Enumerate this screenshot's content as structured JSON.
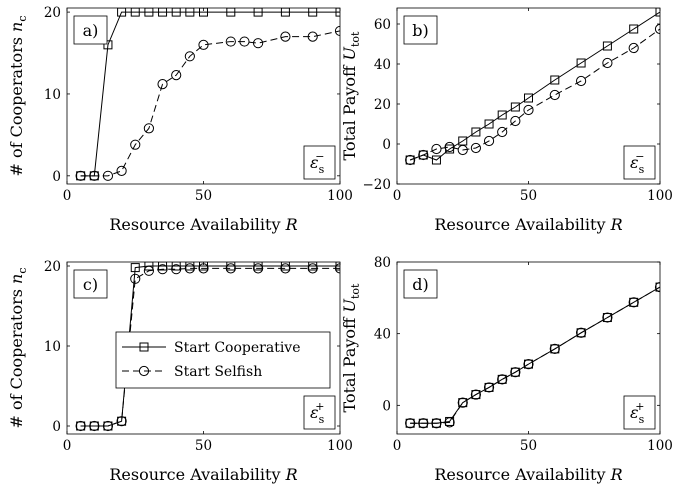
{
  "chart_data": [
    {
      "panel": "a",
      "type": "line",
      "panel_label": "a)",
      "tag": "ε_s^−",
      "xlabel": "Resource Availability R",
      "ylabel": "# of Cooperators n_c",
      "xlim": [
        0,
        100
      ],
      "ylim": [
        -1,
        20.5
      ],
      "xticks": [
        0,
        50,
        100
      ],
      "yticks": [
        0,
        10,
        20
      ],
      "grid": false,
      "series": [
        {
          "name": "Start Cooperative",
          "style": "solid",
          "marker": "square",
          "x": [
            5,
            10,
            15,
            20,
            25,
            30,
            35,
            40,
            45,
            50,
            60,
            70,
            80,
            90,
            100
          ],
          "y": [
            0,
            0,
            16,
            20,
            20,
            20,
            20,
            20,
            20,
            20,
            20,
            20,
            20,
            20,
            20
          ]
        },
        {
          "name": "Start Selfish",
          "style": "dashed",
          "marker": "circle",
          "x": [
            5,
            10,
            15,
            20,
            25,
            30,
            35,
            40,
            45,
            50,
            60,
            65,
            70,
            80,
            90,
            100
          ],
          "y": [
            0,
            0,
            0,
            0.6,
            3.8,
            5.8,
            11.2,
            12.3,
            14.6,
            16.0,
            16.4,
            16.4,
            16.2,
            17.0,
            17.0,
            17.7
          ]
        }
      ]
    },
    {
      "panel": "b",
      "type": "line",
      "panel_label": "b)",
      "tag": "ε_s^−",
      "xlabel": "Resource Availability R",
      "ylabel": "Total Payoff U_tot",
      "xlim": [
        0,
        100
      ],
      "ylim": [
        -20,
        68
      ],
      "xticks": [
        0,
        50,
        100
      ],
      "yticks": [
        -20,
        0,
        20,
        40,
        60
      ],
      "grid": false,
      "series": [
        {
          "name": "Start Cooperative",
          "style": "solid",
          "marker": "square",
          "x": [
            5,
            10,
            15,
            20,
            25,
            30,
            35,
            40,
            45,
            50,
            60,
            70,
            80,
            90,
            100
          ],
          "y": [
            -8,
            -5.5,
            -8,
            -2.5,
            1.5,
            6,
            10,
            14.5,
            18.5,
            23,
            32,
            40.5,
            49,
            57.5,
            66
          ]
        },
        {
          "name": "Start Selfish",
          "style": "dashed",
          "marker": "circle",
          "x": [
            5,
            10,
            15,
            20,
            25,
            30,
            35,
            40,
            45,
            50,
            60,
            70,
            80,
            90,
            100
          ],
          "y": [
            -8,
            -5.5,
            -2.5,
            -1.5,
            -3,
            -2,
            1.5,
            6,
            11.5,
            17,
            24.5,
            31.5,
            40.5,
            48,
            57.5
          ]
        }
      ]
    },
    {
      "panel": "c",
      "type": "line",
      "panel_label": "c)",
      "tag": "ε_s^+",
      "xlabel": "Resource Availability R",
      "ylabel": "# of Cooperators n_c",
      "xlim": [
        0,
        100
      ],
      "ylim": [
        -1,
        20.5
      ],
      "xticks": [
        0,
        50,
        100
      ],
      "yticks": [
        0,
        10,
        20
      ],
      "grid": false,
      "legend": {
        "placement": "center",
        "entries": [
          "Start Cooperative",
          "Start Selfish"
        ]
      },
      "series": [
        {
          "name": "Start Cooperative",
          "style": "solid",
          "marker": "square",
          "x": [
            5,
            10,
            15,
            20,
            25,
            30,
            35,
            40,
            45,
            50,
            60,
            70,
            80,
            90,
            100
          ],
          "y": [
            0,
            0,
            0,
            0.6,
            19.8,
            20,
            20,
            20,
            20,
            20,
            20,
            20,
            20,
            20,
            20
          ]
        },
        {
          "name": "Start Selfish",
          "style": "dashed",
          "marker": "circle",
          "x": [
            5,
            10,
            15,
            20,
            25,
            30,
            35,
            40,
            45,
            50,
            60,
            70,
            80,
            90,
            100
          ],
          "y": [
            0,
            0,
            0,
            0.6,
            18.4,
            19.4,
            19.6,
            19.6,
            19.7,
            19.7,
            19.7,
            19.7,
            19.7,
            19.7,
            19.7
          ]
        }
      ]
    },
    {
      "panel": "d",
      "type": "line",
      "panel_label": "d)",
      "tag": "ε_s^+",
      "xlabel": "Resource Availability R",
      "ylabel": "Total Payoff U_tot",
      "xlim": [
        0,
        100
      ],
      "ylim": [
        -16,
        80
      ],
      "xticks": [
        0,
        50,
        100
      ],
      "yticks": [
        0,
        40,
        80
      ],
      "grid": false,
      "series": [
        {
          "name": "Start Cooperative",
          "style": "solid",
          "marker": "square",
          "x": [
            5,
            10,
            15,
            20,
            25,
            30,
            35,
            40,
            45,
            50,
            60,
            70,
            80,
            90,
            100
          ],
          "y": [
            -10,
            -10,
            -10,
            -9,
            1.5,
            6,
            10,
            14.5,
            18.5,
            23,
            31.5,
            40.5,
            49,
            57.5,
            66
          ]
        },
        {
          "name": "Start Selfish",
          "style": "dashed",
          "marker": "circle",
          "x": [
            5,
            10,
            15,
            20,
            25,
            30,
            35,
            40,
            45,
            50,
            60,
            70,
            80,
            90,
            100
          ],
          "y": [
            -10,
            -10,
            -10,
            -9.5,
            1.5,
            6,
            10,
            14.5,
            18.5,
            23,
            31.5,
            40.5,
            49,
            57.5,
            66
          ]
        }
      ]
    }
  ]
}
